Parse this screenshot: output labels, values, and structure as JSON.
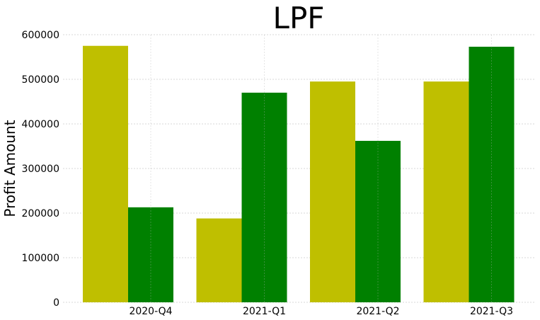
{
  "chart_data": {
    "type": "bar",
    "title": "LPF",
    "xlabel": "",
    "ylabel": "Profit Amount",
    "categories": [
      "2020-Q4",
      "2021-Q1",
      "2021-Q2",
      "2021-Q3"
    ],
    "series": [
      {
        "values": [
          575000,
          188000,
          495000,
          495000
        ],
        "color": "#bfbf00"
      },
      {
        "values": [
          213000,
          470000,
          362000,
          573000
        ],
        "color": "#008000"
      }
    ],
    "ylim": [
      0,
      600000
    ],
    "yticks": [
      "0",
      "100000",
      "200000",
      "300000",
      "400000",
      "500000",
      "600000"
    ],
    "grid": true,
    "grid_color": "#b0b0b0"
  }
}
